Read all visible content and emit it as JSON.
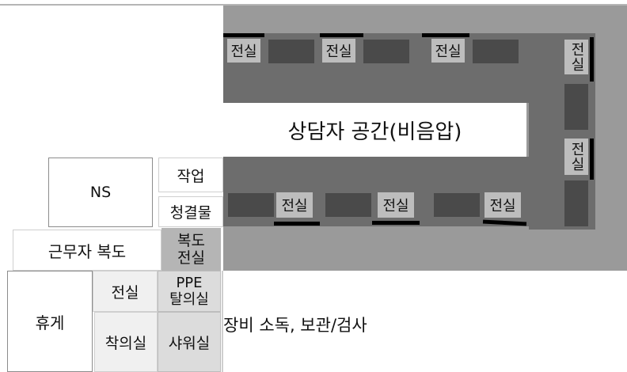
{
  "rooms": {
    "wards": [
      "전실",
      "전실",
      "전실",
      "전실",
      "전실",
      "전실",
      "전실",
      "전실"
    ],
    "consult": "상담자 공간(비음압)",
    "ns": "NS",
    "work": "작업",
    "clean": "청결물",
    "staff_corridor": "근무자 복도",
    "corridor_ante_1": "복도",
    "corridor_ante_2": "전실",
    "rest": "휴게",
    "ante_small": "전실",
    "ppe_1": "PPE",
    "ppe_2": "탈의실",
    "dress": "착의실",
    "shower": "샤워실",
    "equipment": "장비 소독, 보관/검사"
  },
  "colors": {
    "outer": "#9a9a9a",
    "ward": "#6d6d6d",
    "bed": "#4a4a4a",
    "label_bg": "#bdbdbd",
    "door": "#000000"
  }
}
